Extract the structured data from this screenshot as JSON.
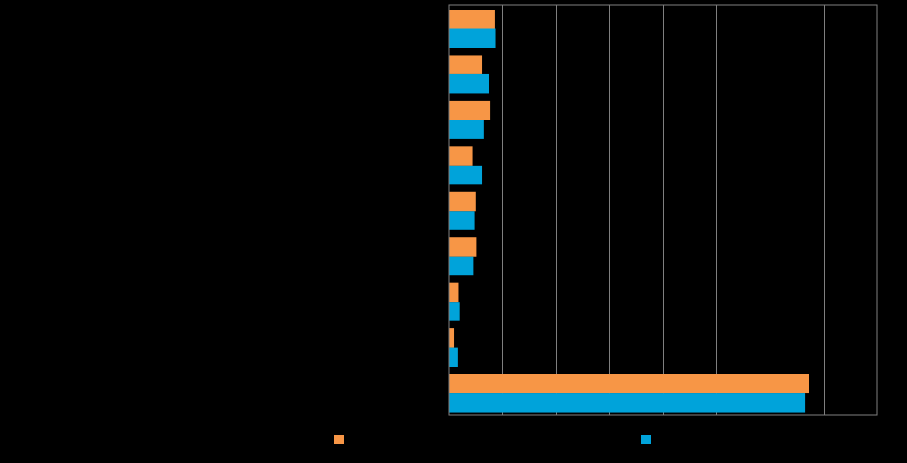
{
  "chart_data": {
    "type": "bar",
    "orientation": "horizontal",
    "title": "",
    "xlabel": "",
    "ylabel": "",
    "categories": [
      "",
      "",
      "",
      "",
      "",
      "",
      "",
      "",
      ""
    ],
    "series": [
      {
        "color": "#F79646",
        "values": [
          0.86,
          0.63,
          0.78,
          0.44,
          0.51,
          0.52,
          0.19,
          0.1,
          6.74
        ]
      },
      {
        "color": "#00A3DA",
        "values": [
          0.87,
          0.75,
          0.66,
          0.63,
          0.49,
          0.47,
          0.21,
          0.18,
          6.66
        ]
      }
    ],
    "xlim": [
      0,
      8
    ],
    "x_ticks": [
      0,
      1,
      2,
      3,
      4,
      5,
      6,
      7,
      8
    ],
    "grid": "vertical",
    "legend": "bottom"
  },
  "style": {
    "background": "#000000",
    "axis_color": "#7F7F7F",
    "grid_color": "#7F7F7F"
  }
}
